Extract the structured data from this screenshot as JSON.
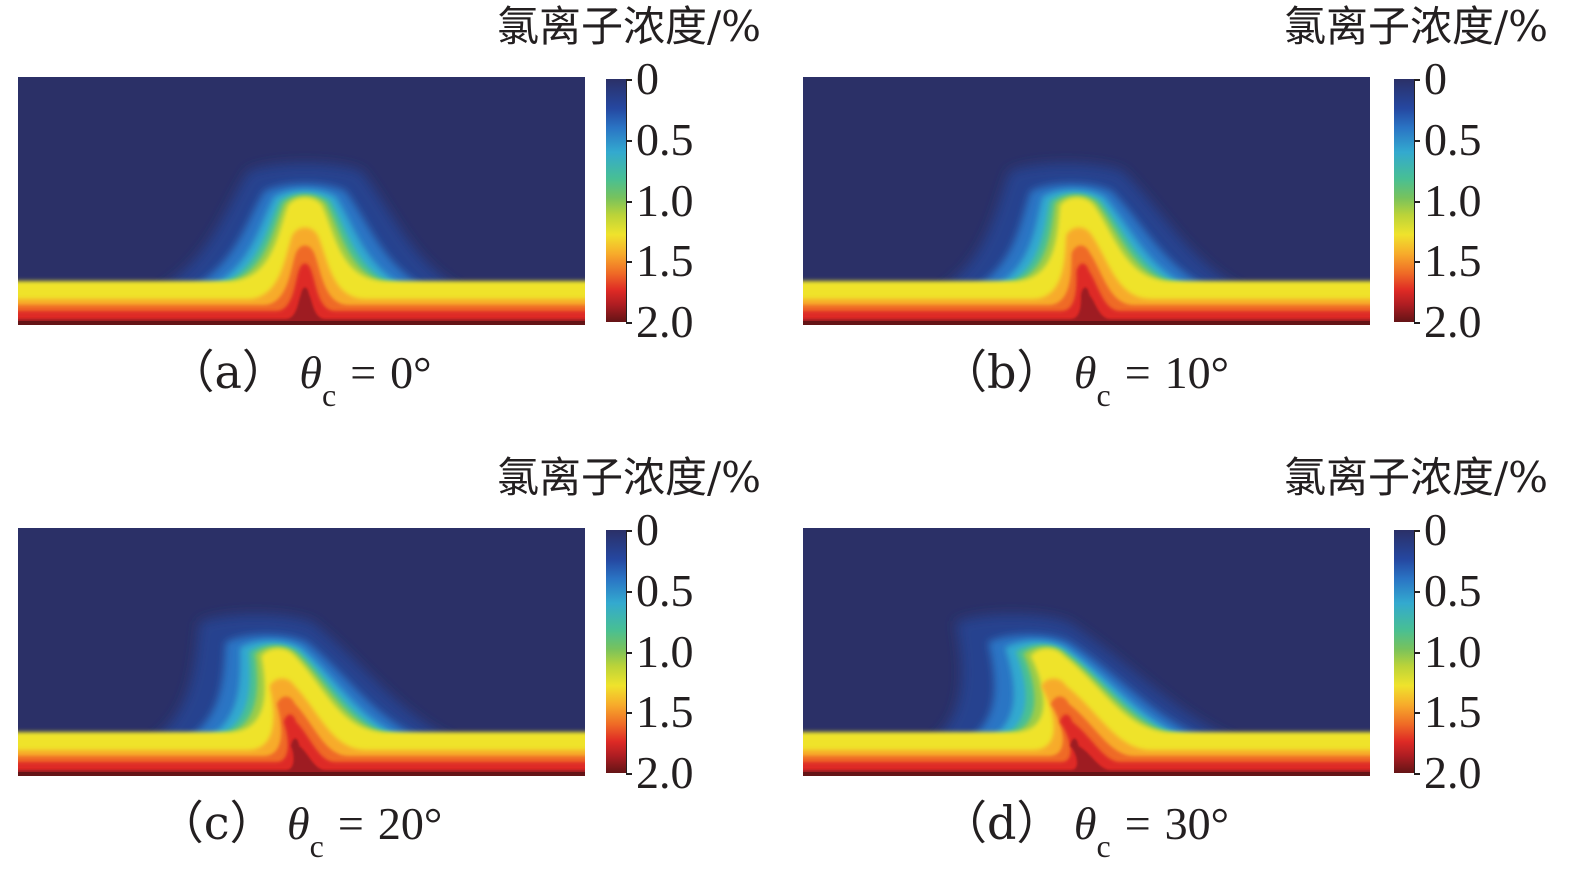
{
  "chart_data": [
    {
      "type": "heatmap",
      "panel_id": "a",
      "caption_letter": "（a）",
      "symbol": "θ",
      "symbol_subscript": "c",
      "equals": "=",
      "angle_text": "0°",
      "angle_deg": 0,
      "colorbar_title": "氯离子浓度/%",
      "colorbar_ticks": [
        "0",
        "0.5",
        "1.0",
        "1.5",
        "2.0"
      ],
      "colorbar_range": [
        0,
        2.0
      ]
    },
    {
      "type": "heatmap",
      "panel_id": "b",
      "caption_letter": "（b）",
      "symbol": "θ",
      "symbol_subscript": "c",
      "equals": "=",
      "angle_text": "10°",
      "angle_deg": 10,
      "colorbar_title": "氯离子浓度/%",
      "colorbar_ticks": [
        "0",
        "0.5",
        "1.0",
        "1.5",
        "2.0"
      ],
      "colorbar_range": [
        0,
        2.0
      ]
    },
    {
      "type": "heatmap",
      "panel_id": "c",
      "caption_letter": "（c）",
      "symbol": "θ",
      "symbol_subscript": "c",
      "equals": "=",
      "angle_text": "20°",
      "angle_deg": 20,
      "colorbar_title": "氯离子浓度/%",
      "colorbar_ticks": [
        "0",
        "0.5",
        "1.0",
        "1.5",
        "2.0"
      ],
      "colorbar_range": [
        0,
        2.0
      ]
    },
    {
      "type": "heatmap",
      "panel_id": "d",
      "caption_letter": "（d）",
      "symbol": "θ",
      "symbol_subscript": "c",
      "equals": "=",
      "angle_text": "30°",
      "angle_deg": 30,
      "colorbar_title": "氯离子浓度/%",
      "colorbar_ticks": [
        "0",
        "0.5",
        "1.0",
        "1.5",
        "2.0"
      ],
      "colorbar_range": [
        0,
        2.0
      ]
    }
  ],
  "colors": {
    "background_field": "#2b3067",
    "scale": [
      "#2b3067",
      "#2547a0",
      "#2a74c4",
      "#33a9cf",
      "#48bf94",
      "#78c25c",
      "#bbd339",
      "#efe32c",
      "#f7ab2b",
      "#ef6a26",
      "#de2a25",
      "#ad1d22",
      "#641416"
    ]
  }
}
